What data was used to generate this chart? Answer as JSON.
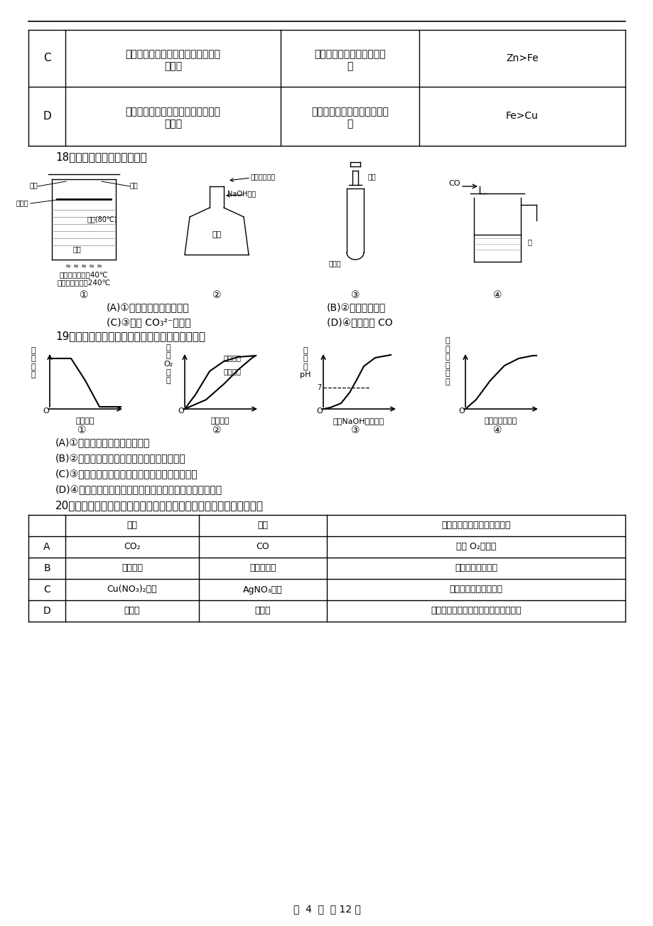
{
  "bg_color": "#ffffff",
  "page_footer": "第  4  页  共 12 页",
  "table1_rows": [
    {
      "label": "C",
      "col1_line1": "分别将锌粉与铁丝放入相同浓度的稀",
      "col1_line2": "盐酸中",
      "col2_line1": "锌粉产生气泡的速率比铁丝",
      "col2_line2": "快",
      "col3": "Zn>Fe"
    },
    {
      "label": "D",
      "col1_line1": "分别将铁丝与铜丝放入相同浓度的稀",
      "col1_line2": "盐酸中",
      "col2_line1": "铁丝表面产生气泡，铜丝无现",
      "col2_line2": "象",
      "col3": "Fe>Cu"
    }
  ],
  "q18_title": "18．下列实验能达到目的的是",
  "q18_optA": "(A)①验证可燃物燃烧的条件",
  "q18_optB": "(B)②检验铵态氮肥",
  "q18_optC": "(C)③检验 CO₃²⁻的存在",
  "q18_optD": "(D)④用水吸收 CO",
  "q19_title": "19．下列四个图像能正确反映其对应实验操作的是",
  "q19_optA": "(A)①高温煅烧一定质量的石灰石",
  "q19_optB": "(B)②用等质量、等浓度的双氧水分别制取氧气",
  "q19_optC": "(C)③向一定体积的稀盐酸中逐滴加入氢氧化钠溶液",
  "q19_optD": "(D)④某温度下，向一定量饱和硝酸钾溶液中加人硝酸钾晶体",
  "q20_title": "20．除去下列物质中混有的杂质，所选用的试剂及操作方法均正确的是",
  "table2_headers": [
    "",
    "物质",
    "杂质",
    "除杂质选用的试剂和操作方法"
  ],
  "table2_rows": [
    [
      "A",
      "CO₂",
      "CO",
      "通入 O₂，点燃"
    ],
    [
      "B",
      "二氧化碳",
      "氯化氢气体",
      "通过氢氧化钠溶液"
    ],
    [
      "C",
      "Cu(NO₃)₂溶液",
      "AgNO₃溶液",
      "加入过量的铜粉，过滤"
    ],
    [
      "D",
      "碳酸钙",
      "氯化钙",
      "加入足量的水溶解，过滤、洗涤、干燥"
    ]
  ],
  "g1_ylabel": "固\n体\n质\n量",
  "g1_xlabel": "反应时间",
  "g2_ylabel": "生\n成\nO₂\n质\n量",
  "g2_xlabel": "反应时间",
  "g2_label1": "有催化剂",
  "g2_label2": "无催化剂",
  "g3_ylabel": "溶\n液\n的\npH",
  "g3_xlabel": "加入NaOH溶液质量",
  "g4_ylabel": "溶\n质\n质\n量\n分\n数",
  "g4_xlabel": "加入硝酸钾质量"
}
